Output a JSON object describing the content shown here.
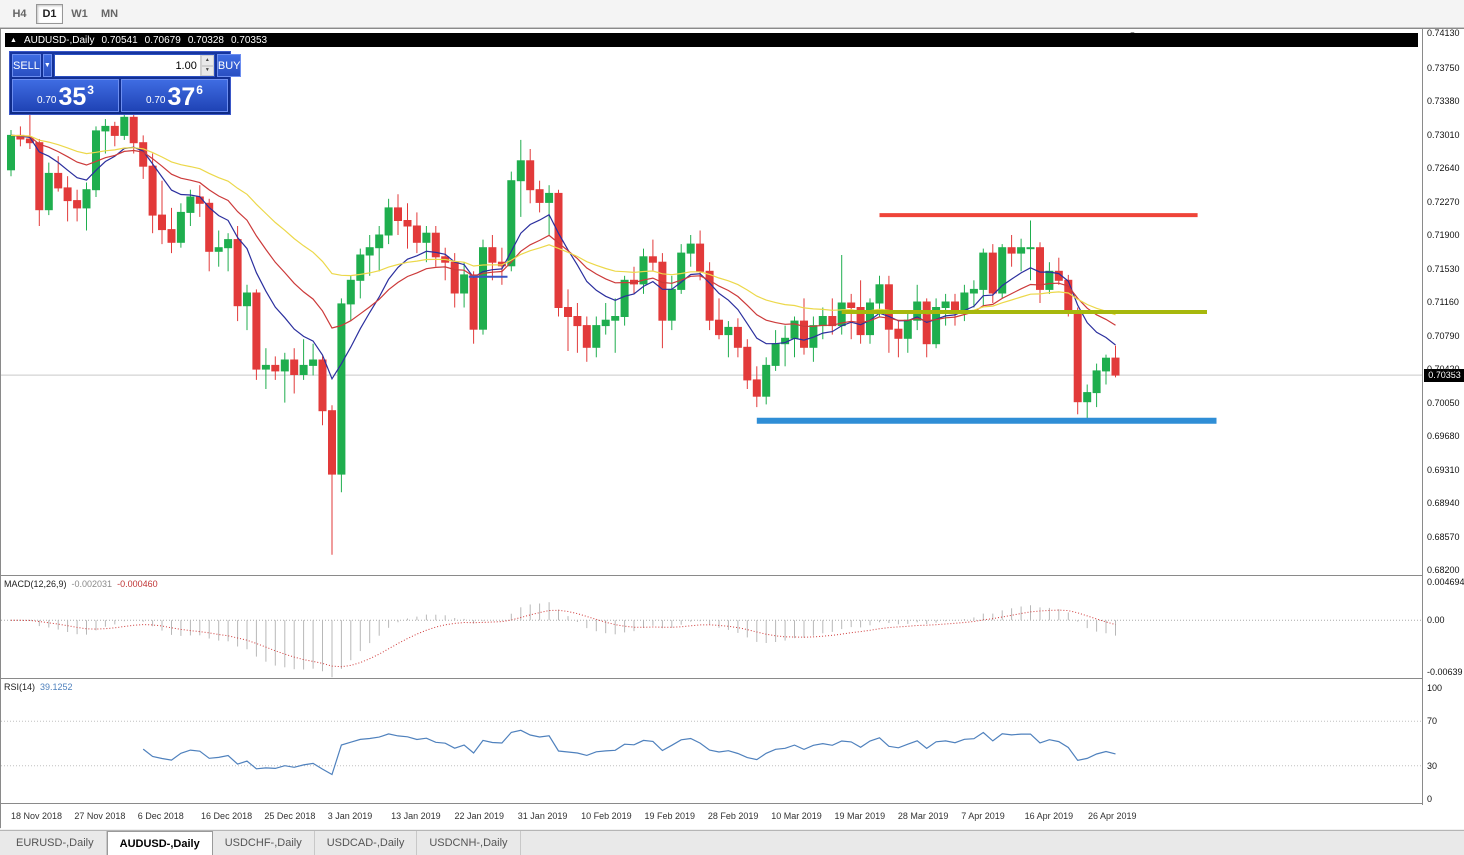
{
  "icons": {
    "bullish_arrow": "▲",
    "dropdown_arrow": "▼",
    "spin_up": "▲",
    "spin_down": "▼",
    "shift_marker": "▼"
  },
  "toolbar": {
    "timeframes": [
      {
        "label": "H4",
        "active": false
      },
      {
        "label": "D1",
        "active": true
      },
      {
        "label": "W1",
        "active": false
      },
      {
        "label": "MN",
        "active": false
      }
    ]
  },
  "chart_window": {
    "symbol": "AUDUSD-,Daily",
    "open": "0.70541",
    "high": "0.70679",
    "low": "0.70328",
    "close": "0.70353"
  },
  "trade_panel": {
    "sell_label": "SELL",
    "buy_label": "BUY",
    "volume": "1.00",
    "sell_price": {
      "prefix": "0.70",
      "digits": "35",
      "pip": "3"
    },
    "buy_price": {
      "prefix": "0.70",
      "digits": "37",
      "pip": "6"
    }
  },
  "price_axis": {
    "labels": [
      "0.74130",
      "0.73750",
      "0.73380",
      "0.73010",
      "0.72640",
      "0.72270",
      "0.71900",
      "0.71530",
      "0.71160",
      "0.70790",
      "0.70420",
      "0.70050",
      "0.69680",
      "0.69310",
      "0.68940",
      "0.68570",
      "0.68200"
    ],
    "current": "0.70353"
  },
  "macd_panel": {
    "name": "MACD(12,26,9)",
    "main_value": "-0.002031",
    "signal_value": "-0.000460",
    "axis": [
      "0.004694",
      "0.00",
      "-0.00639"
    ]
  },
  "rsi_panel": {
    "name": "RSI(14)",
    "value": "39.1252",
    "axis": [
      "100",
      "70",
      "30",
      "0"
    ]
  },
  "date_axis": {
    "labels": [
      "18 Nov 2018",
      "27 Nov 2018",
      "6 Dec 2018",
      "16 Dec 2018",
      "25 Dec 2018",
      "3 Jan 2019",
      "13 Jan 2019",
      "22 Jan 2019",
      "31 Jan 2019",
      "10 Feb 2019",
      "19 Feb 2019",
      "28 Feb 2019",
      "10 Mar 2019",
      "19 Mar 2019",
      "28 Mar 2019",
      "7 Apr 2019",
      "16 Apr 2019",
      "26 Apr 2019"
    ]
  },
  "tabs": [
    {
      "label": "EURUSD-,Daily",
      "active": false
    },
    {
      "label": "AUDUSD-,Daily",
      "active": true
    },
    {
      "label": "USDCHF-,Daily",
      "active": false
    },
    {
      "label": "USDCAD-,Daily",
      "active": false
    },
    {
      "label": "USDCNH-,Daily",
      "active": false
    }
  ],
  "chart_data": {
    "type": "candlestick",
    "symbol": "AUDUSD",
    "timeframe": "Daily",
    "ylim": [
      0.68135,
      0.74175
    ],
    "colors": {
      "up": "#1fae4e",
      "down": "#e23a3a"
    },
    "moving_averages": [
      {
        "name": "ma-fast",
        "period": 9,
        "method": "ema",
        "color": "#2b2f9e"
      },
      {
        "name": "ma-medium",
        "period": 18,
        "method": "ema",
        "color": "#cc3a3a"
      },
      {
        "name": "ma-slow",
        "period": 34,
        "method": "ema",
        "color": "#ecd84a"
      }
    ],
    "hlines": [
      {
        "name": "resistance-line",
        "price": 0.7212,
        "from": 92,
        "to": 125.7,
        "color": "#ef4439",
        "width": 4
      },
      {
        "name": "mid-support-line",
        "price": 0.7105,
        "from": 88,
        "to": 126.7,
        "color": "#a7b80d",
        "width": 4
      },
      {
        "name": "support-line",
        "price": 0.6985,
        "from": 79,
        "to": 127.7,
        "color": "#2f8ed6",
        "width": 6
      },
      {
        "name": "short-blue-line",
        "price": 0.7144,
        "from": 48.5,
        "to": 52.6,
        "color": "#3b55c4",
        "width": 2
      }
    ],
    "indicators": {
      "macd": {
        "params": [
          12,
          26,
          9
        ],
        "main": -0.002031,
        "signal": -0.00046,
        "ylim": [
          -0.0072,
          0.0053
        ]
      },
      "rsi": {
        "period": 14,
        "value": 39.1252,
        "levels": [
          30,
          70
        ]
      }
    },
    "candles": [
      [
        "2018-11-16",
        0.7262,
        0.7306,
        0.7255,
        0.73
      ],
      [
        "2018-11-18",
        0.73,
        0.731,
        0.7288,
        0.7296
      ],
      [
        "2018-11-19",
        0.7296,
        0.7325,
        0.7285,
        0.7292
      ],
      [
        "2018-11-20",
        0.7292,
        0.7296,
        0.72,
        0.7218
      ],
      [
        "2018-11-21",
        0.7218,
        0.727,
        0.7212,
        0.7258
      ],
      [
        "2018-11-22",
        0.7258,
        0.7277,
        0.7238,
        0.7242
      ],
      [
        "2018-11-23",
        0.7242,
        0.7255,
        0.7205,
        0.7228
      ],
      [
        "2018-11-26",
        0.7228,
        0.724,
        0.7205,
        0.722
      ],
      [
        "2018-11-27",
        0.722,
        0.7248,
        0.7195,
        0.724
      ],
      [
        "2018-11-28",
        0.724,
        0.731,
        0.7232,
        0.7305
      ],
      [
        "2018-11-29",
        0.7305,
        0.7318,
        0.728,
        0.731
      ],
      [
        "2018-11-30",
        0.731,
        0.7315,
        0.7288,
        0.73
      ],
      [
        "2018-12-03",
        0.73,
        0.7325,
        0.7295,
        0.732
      ],
      [
        "2018-12-04",
        0.732,
        0.7328,
        0.728,
        0.7292
      ],
      [
        "2018-12-05",
        0.7292,
        0.73,
        0.7252,
        0.7266
      ],
      [
        "2018-12-06",
        0.7266,
        0.728,
        0.7192,
        0.7212
      ],
      [
        "2018-12-07",
        0.7212,
        0.725,
        0.718,
        0.7196
      ],
      [
        "2018-12-10",
        0.7196,
        0.722,
        0.717,
        0.7182
      ],
      [
        "2018-12-11",
        0.7182,
        0.7225,
        0.7176,
        0.7215
      ],
      [
        "2018-12-12",
        0.7215,
        0.724,
        0.72,
        0.7232
      ],
      [
        "2018-12-13",
        0.7232,
        0.7245,
        0.721,
        0.7225
      ],
      [
        "2018-12-14",
        0.7225,
        0.723,
        0.715,
        0.7172
      ],
      [
        "2018-12-17",
        0.7172,
        0.7195,
        0.7155,
        0.7176
      ],
      [
        "2018-12-18",
        0.7176,
        0.7192,
        0.715,
        0.7185
      ],
      [
        "2018-12-19",
        0.7185,
        0.72,
        0.7095,
        0.7112
      ],
      [
        "2018-12-20",
        0.7112,
        0.7135,
        0.7085,
        0.7126
      ],
      [
        "2018-12-21",
        0.7126,
        0.713,
        0.703,
        0.7042
      ],
      [
        "2018-12-24",
        0.7042,
        0.7065,
        0.702,
        0.7046
      ],
      [
        "2018-12-25",
        0.7046,
        0.7056,
        0.703,
        0.704
      ],
      [
        "2018-12-26",
        0.704,
        0.706,
        0.7005,
        0.7052
      ],
      [
        "2018-12-27",
        0.7052,
        0.7065,
        0.7015,
        0.7036
      ],
      [
        "2018-12-28",
        0.7036,
        0.7075,
        0.703,
        0.7046
      ],
      [
        "2018-12-31",
        0.7046,
        0.707,
        0.7035,
        0.7052
      ],
      [
        "2019-01-02",
        0.7052,
        0.7056,
        0.698,
        0.6996
      ],
      [
        "2019-01-03",
        0.6996,
        0.7002,
        0.6837,
        0.6926
      ],
      [
        "2019-01-04",
        0.6926,
        0.712,
        0.6906,
        0.7114
      ],
      [
        "2019-01-07",
        0.7114,
        0.7145,
        0.7095,
        0.714
      ],
      [
        "2019-01-08",
        0.714,
        0.7175,
        0.712,
        0.7168
      ],
      [
        "2019-01-09",
        0.7168,
        0.719,
        0.7145,
        0.7176
      ],
      [
        "2019-01-10",
        0.7176,
        0.72,
        0.715,
        0.719
      ],
      [
        "2019-01-11",
        0.719,
        0.723,
        0.718,
        0.722
      ],
      [
        "2019-01-14",
        0.722,
        0.7235,
        0.719,
        0.7206
      ],
      [
        "2019-01-15",
        0.7206,
        0.7225,
        0.7175,
        0.72
      ],
      [
        "2019-01-16",
        0.72,
        0.7215,
        0.717,
        0.7182
      ],
      [
        "2019-01-17",
        0.7182,
        0.72,
        0.716,
        0.7192
      ],
      [
        "2019-01-18",
        0.7192,
        0.72,
        0.7155,
        0.7166
      ],
      [
        "2019-01-21",
        0.7166,
        0.7176,
        0.714,
        0.716
      ],
      [
        "2019-01-22",
        0.716,
        0.717,
        0.711,
        0.7126
      ],
      [
        "2019-01-23",
        0.7126,
        0.716,
        0.711,
        0.7146
      ],
      [
        "2019-01-24",
        0.7146,
        0.715,
        0.707,
        0.7086
      ],
      [
        "2019-01-25",
        0.7086,
        0.7185,
        0.708,
        0.7176
      ],
      [
        "2019-01-28",
        0.7176,
        0.719,
        0.714,
        0.716
      ],
      [
        "2019-01-29",
        0.716,
        0.7176,
        0.7135,
        0.7156
      ],
      [
        "2019-01-30",
        0.7156,
        0.726,
        0.715,
        0.725
      ],
      [
        "2019-01-31",
        0.725,
        0.7295,
        0.721,
        0.7272
      ],
      [
        "2019-02-01",
        0.7272,
        0.7285,
        0.7225,
        0.724
      ],
      [
        "2019-02-04",
        0.724,
        0.725,
        0.7215,
        0.7226
      ],
      [
        "2019-02-05",
        0.7226,
        0.7245,
        0.719,
        0.7236
      ],
      [
        "2019-02-06",
        0.7236,
        0.724,
        0.71,
        0.711
      ],
      [
        "2019-02-07",
        0.711,
        0.713,
        0.7062,
        0.71
      ],
      [
        "2019-02-08",
        0.71,
        0.7115,
        0.706,
        0.709
      ],
      [
        "2019-02-11",
        0.709,
        0.71,
        0.705,
        0.7066
      ],
      [
        "2019-02-12",
        0.7066,
        0.71,
        0.7055,
        0.709
      ],
      [
        "2019-02-13",
        0.709,
        0.7115,
        0.708,
        0.7096
      ],
      [
        "2019-02-14",
        0.7096,
        0.712,
        0.706,
        0.71
      ],
      [
        "2019-02-15",
        0.71,
        0.7145,
        0.709,
        0.714
      ],
      [
        "2019-02-18",
        0.714,
        0.7155,
        0.7125,
        0.7136
      ],
      [
        "2019-02-19",
        0.7136,
        0.7175,
        0.7125,
        0.7166
      ],
      [
        "2019-02-20",
        0.7166,
        0.7185,
        0.715,
        0.716
      ],
      [
        "2019-02-21",
        0.716,
        0.717,
        0.7065,
        0.7096
      ],
      [
        "2019-02-22",
        0.7096,
        0.7145,
        0.7085,
        0.713
      ],
      [
        "2019-02-25",
        0.713,
        0.718,
        0.7125,
        0.717
      ],
      [
        "2019-02-26",
        0.717,
        0.719,
        0.7155,
        0.718
      ],
      [
        "2019-02-27",
        0.718,
        0.7195,
        0.714,
        0.715
      ],
      [
        "2019-02-28",
        0.715,
        0.716,
        0.7085,
        0.7096
      ],
      [
        "2019-03-01",
        0.7096,
        0.712,
        0.7075,
        0.708
      ],
      [
        "2019-03-04",
        0.708,
        0.7095,
        0.7055,
        0.7088
      ],
      [
        "2019-03-05",
        0.7088,
        0.7098,
        0.7055,
        0.7066
      ],
      [
        "2019-03-06",
        0.7066,
        0.7075,
        0.702,
        0.703
      ],
      [
        "2019-03-07",
        0.703,
        0.7045,
        0.7,
        0.7012
      ],
      [
        "2019-03-08",
        0.7012,
        0.7055,
        0.7003,
        0.7046
      ],
      [
        "2019-03-11",
        0.7046,
        0.7085,
        0.704,
        0.707
      ],
      [
        "2019-03-12",
        0.707,
        0.709,
        0.7045,
        0.7076
      ],
      [
        "2019-03-13",
        0.7076,
        0.71,
        0.7055,
        0.7095
      ],
      [
        "2019-03-14",
        0.7095,
        0.712,
        0.7058,
        0.7066
      ],
      [
        "2019-03-15",
        0.7066,
        0.71,
        0.705,
        0.709
      ],
      [
        "2019-03-18",
        0.709,
        0.711,
        0.7075,
        0.71
      ],
      [
        "2019-03-19",
        0.71,
        0.712,
        0.708,
        0.709
      ],
      [
        "2019-03-20",
        0.709,
        0.7168,
        0.708,
        0.7115
      ],
      [
        "2019-03-21",
        0.7115,
        0.7125,
        0.7075,
        0.711
      ],
      [
        "2019-03-22",
        0.711,
        0.714,
        0.707,
        0.708
      ],
      [
        "2019-03-25",
        0.708,
        0.712,
        0.707,
        0.7115
      ],
      [
        "2019-03-26",
        0.7115,
        0.7145,
        0.71,
        0.7135
      ],
      [
        "2019-03-27",
        0.7135,
        0.7145,
        0.706,
        0.7086
      ],
      [
        "2019-03-28",
        0.7086,
        0.7096,
        0.7055,
        0.7076
      ],
      [
        "2019-03-29",
        0.7076,
        0.7105,
        0.706,
        0.7096
      ],
      [
        "2019-04-01",
        0.7096,
        0.7135,
        0.7085,
        0.7116
      ],
      [
        "2019-04-02",
        0.7116,
        0.712,
        0.7055,
        0.707
      ],
      [
        "2019-04-03",
        0.707,
        0.712,
        0.7065,
        0.711
      ],
      [
        "2019-04-04",
        0.711,
        0.7125,
        0.709,
        0.7116
      ],
      [
        "2019-04-05",
        0.7116,
        0.7125,
        0.709,
        0.7106
      ],
      [
        "2019-04-08",
        0.7106,
        0.7135,
        0.7095,
        0.7126
      ],
      [
        "2019-04-09",
        0.7126,
        0.714,
        0.711,
        0.713
      ],
      [
        "2019-04-10",
        0.713,
        0.7175,
        0.711,
        0.717
      ],
      [
        "2019-04-11",
        0.717,
        0.718,
        0.7115,
        0.7126
      ],
      [
        "2019-04-12",
        0.7126,
        0.718,
        0.712,
        0.7176
      ],
      [
        "2019-04-15",
        0.7176,
        0.719,
        0.7155,
        0.717
      ],
      [
        "2019-04-16",
        0.717,
        0.7186,
        0.715,
        0.7176
      ],
      [
        "2019-04-17",
        0.7176,
        0.7206,
        0.714,
        0.7176
      ],
      [
        "2019-04-18",
        0.7176,
        0.7182,
        0.7115,
        0.713
      ],
      [
        "2019-04-19",
        0.713,
        0.716,
        0.7125,
        0.715
      ],
      [
        "2019-04-22",
        0.715,
        0.7165,
        0.7135,
        0.714
      ],
      [
        "2019-04-23",
        0.714,
        0.7146,
        0.71,
        0.7106
      ],
      [
        "2019-04-24",
        0.7106,
        0.711,
        0.6992,
        0.7006
      ],
      [
        "2019-04-25",
        0.7006,
        0.7025,
        0.6988,
        0.7016
      ],
      [
        "2019-04-26",
        0.7016,
        0.7048,
        0.7,
        0.704
      ],
      [
        "2019-04-29",
        0.704,
        0.7058,
        0.7025,
        0.7054
      ],
      [
        "2019-04-30",
        0.70541,
        0.70679,
        0.70328,
        0.70353
      ]
    ]
  }
}
